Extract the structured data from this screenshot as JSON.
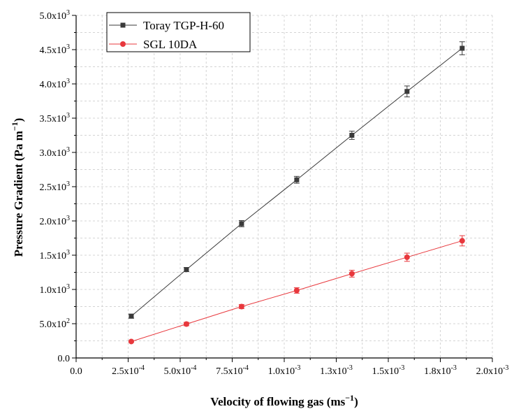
{
  "chart_data": {
    "type": "line",
    "xlabel": "Velocity of flowing gas (ms",
    "xlabel_sup": "−1",
    "xlabel_end": ")",
    "ylabel": "Pressure Gradient (Pa m",
    "ylabel_sup": "−1",
    "ylabel_end": ")",
    "xlim": [
      0,
      0.002
    ],
    "ylim": [
      0,
      5000
    ],
    "grid": true,
    "legend_position": "top-left",
    "x_ticks": [
      {
        "value": 0,
        "label": "0.0"
      },
      {
        "value": 0.00025,
        "mant": "2.5x10",
        "exp": "-4"
      },
      {
        "value": 0.0005,
        "mant": "5.0x10",
        "exp": "-4"
      },
      {
        "value": 0.00075,
        "mant": "7.5x10",
        "exp": "-4"
      },
      {
        "value": 0.001,
        "mant": "1.0x10",
        "exp": "-3"
      },
      {
        "value": 0.00125,
        "mant": "1.3x10",
        "exp": "-3"
      },
      {
        "value": 0.0015,
        "mant": "1.5x10",
        "exp": "-3"
      },
      {
        "value": 0.00175,
        "mant": "1.8x10",
        "exp": "-3"
      },
      {
        "value": 0.002,
        "mant": "2.0x10",
        "exp": "-3"
      }
    ],
    "y_ticks": [
      {
        "value": 0,
        "label": "0.0"
      },
      {
        "value": 500,
        "mant": "5.0x10",
        "exp": "2"
      },
      {
        "value": 1000,
        "mant": "1.0x10",
        "exp": "3"
      },
      {
        "value": 1500,
        "mant": "1.5x10",
        "exp": "3"
      },
      {
        "value": 2000,
        "mant": "2.0x10",
        "exp": "3"
      },
      {
        "value": 2500,
        "mant": "2.5x10",
        "exp": "3"
      },
      {
        "value": 3000,
        "mant": "3.0x10",
        "exp": "3"
      },
      {
        "value": 3500,
        "mant": "3.5x10",
        "exp": "3"
      },
      {
        "value": 4000,
        "mant": "4.0x10",
        "exp": "3"
      },
      {
        "value": 4500,
        "mant": "4.5x10",
        "exp": "3"
      },
      {
        "value": 5000,
        "mant": "5.0x10",
        "exp": "3"
      }
    ],
    "series": [
      {
        "name": "Toray TGP-H-60",
        "color": "#3a3a3a",
        "marker": "square",
        "x": [
          0.000265,
          0.00053,
          0.000795,
          0.00106,
          0.001325,
          0.00159,
          0.001855
        ],
        "y": [
          610,
          1290,
          1960,
          2600,
          3250,
          3890,
          4520
        ],
        "error": [
          30,
          30,
          45,
          50,
          60,
          80,
          95
        ]
      },
      {
        "name": "SGL 10DA",
        "color": "#e8383d",
        "marker": "circle",
        "x": [
          0.000265,
          0.00053,
          0.000795,
          0.00106,
          0.001325,
          0.00159,
          0.001855
        ],
        "y": [
          240,
          495,
          750,
          985,
          1230,
          1470,
          1710
        ],
        "error": [
          10,
          25,
          30,
          40,
          50,
          60,
          75
        ]
      }
    ]
  }
}
